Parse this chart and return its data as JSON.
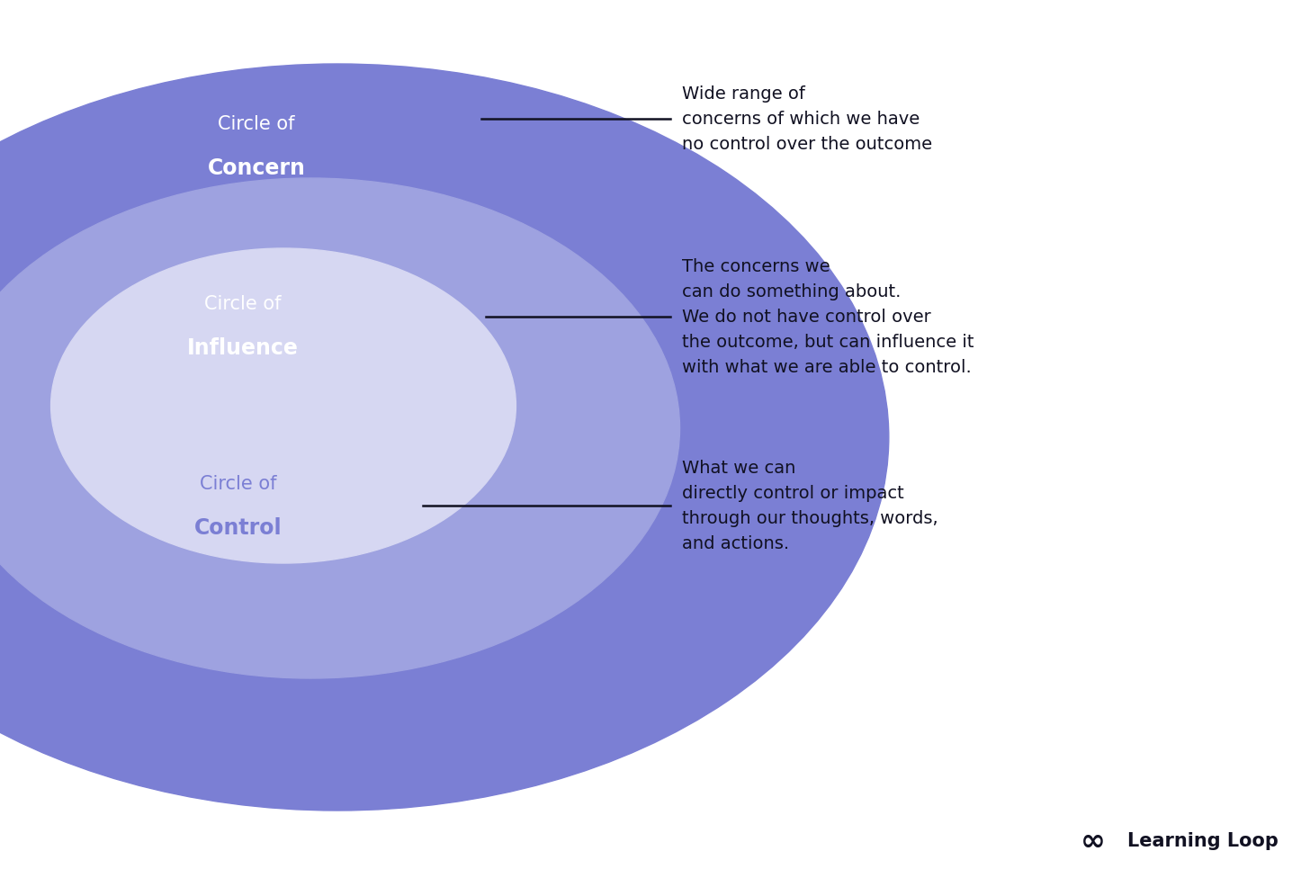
{
  "bg_color": "#ffffff",
  "circle_concern_color": "#7B7FD4",
  "circle_influence_color": "#9EA2E0",
  "circle_control_color": "#D6D7F2",
  "text_color_white": "#ffffff",
  "text_color_blue_light": "#7B7FD4",
  "text_color_dark": "#111122",
  "annotation_text_color": "#111122",
  "label_concern_line1": "Circle of",
  "label_concern_line2": "Concern",
  "label_influence_line1": "Circle of",
  "label_influence_line2": "Influence",
  "label_control_line1": "Circle of",
  "label_control_line2": "Control",
  "annotation_concern_text": "Wide range of\nconcerns of which we have\nno control over the outcome",
  "annotation_influence_text": "The concerns we\ncan do something about.\nWe do not have control over\nthe outcome, but can influence it\nwith what we are able to control.",
  "annotation_control_text": "What we can\ndirectly control or impact\nthrough our thoughts, words,\nand actions.",
  "brand_text": "Learning Loop",
  "label_fontsize": 15,
  "bold_fontsize": 17,
  "annotation_fontsize": 14
}
